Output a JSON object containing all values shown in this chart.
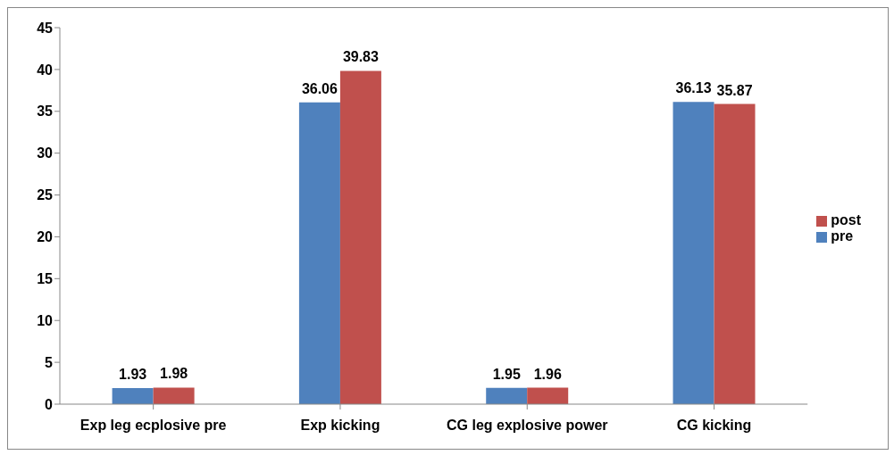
{
  "chart_data": {
    "type": "bar",
    "categories": [
      "Exp leg ecplosive pre",
      "Exp kicking",
      "CG leg explosive power",
      "CG kicking"
    ],
    "series": [
      {
        "name": "pre",
        "color": "#4f81bd",
        "values": [
          1.93,
          36.06,
          1.95,
          36.13
        ]
      },
      {
        "name": "post",
        "color": "#c0504d",
        "values": [
          1.98,
          39.83,
          1.96,
          35.87
        ]
      }
    ],
    "ylim": [
      0,
      45
    ],
    "yticks": [
      0,
      5,
      10,
      15,
      20,
      25,
      30,
      35,
      40,
      45
    ],
    "grid": false,
    "legend": "right",
    "data_labels": true
  }
}
